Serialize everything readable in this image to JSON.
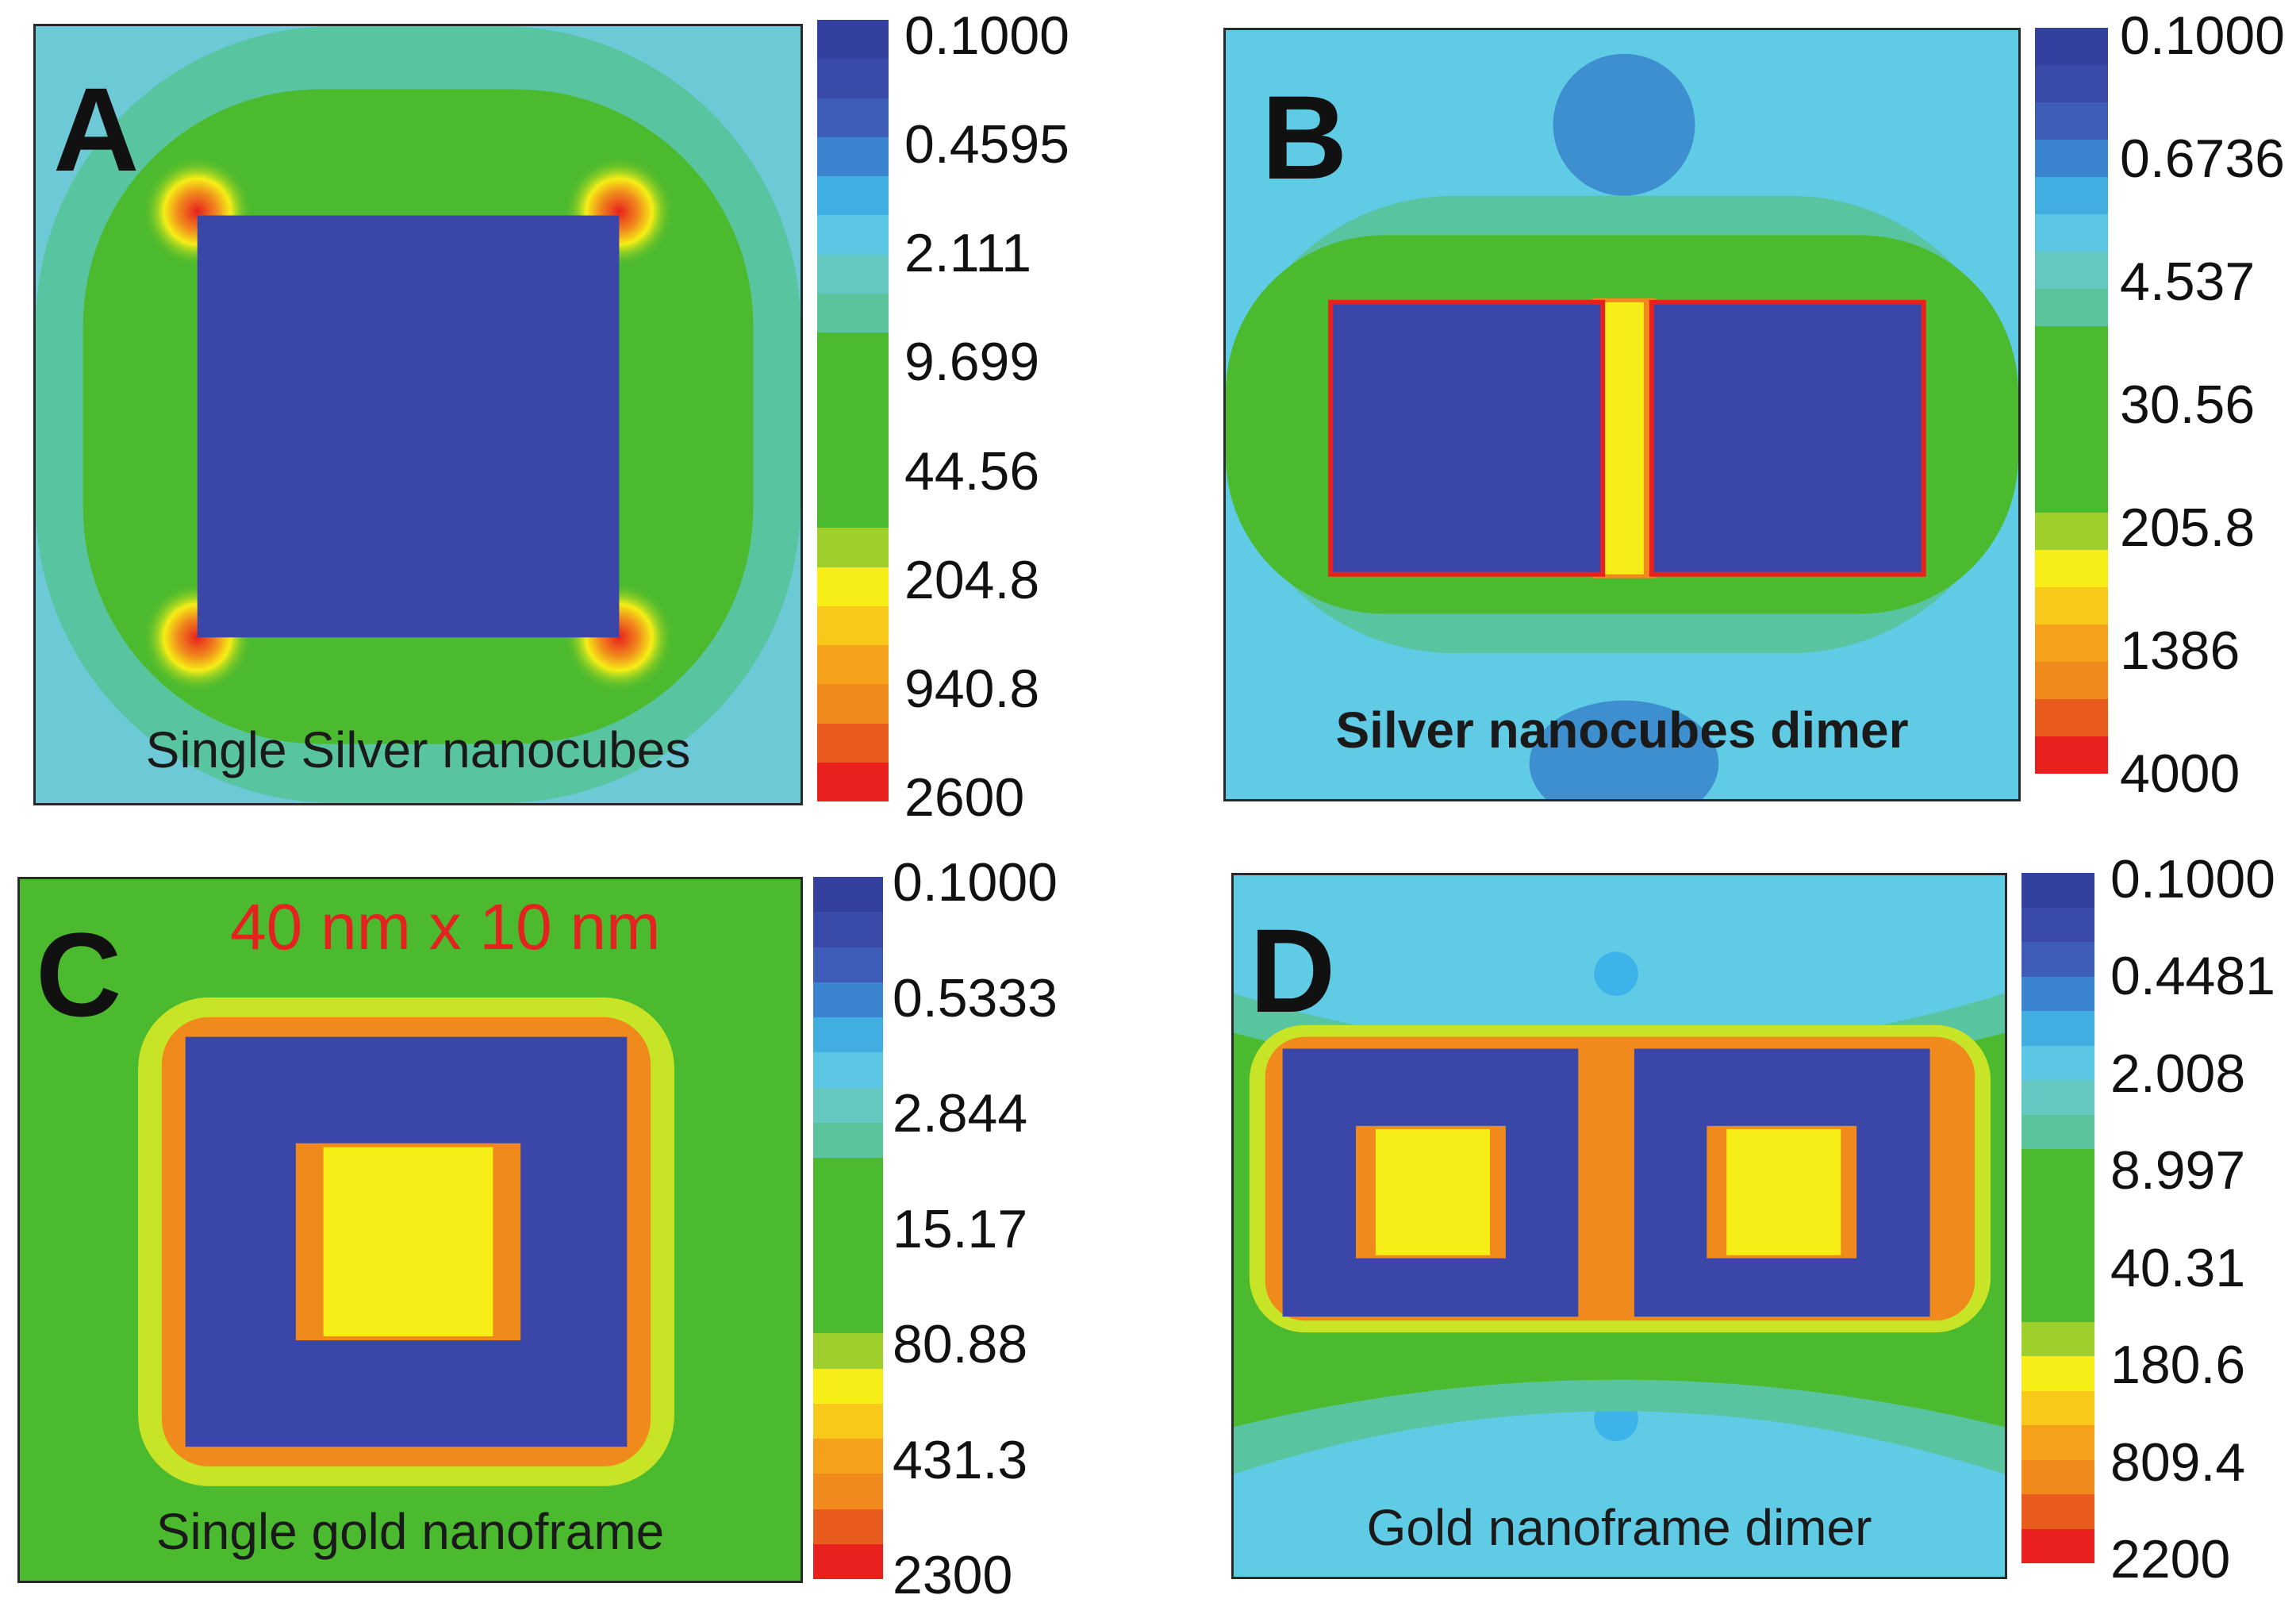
{
  "colors": {
    "blue": "#3a47a8",
    "green": "#4cba2e",
    "yellow": "#f6ee16",
    "red": "#e8211e"
  },
  "panels": [
    {
      "letter": "A",
      "caption": "Single Silver nanocubes",
      "structure": "single-cube",
      "colorbar_ticks": [
        "0.1000",
        "0.4595",
        "2.111",
        "9.699",
        "44.56",
        "204.8",
        "940.8",
        "2600"
      ]
    },
    {
      "letter": "B",
      "caption": "Silver nanocubes dimer",
      "structure": "cube-dimer",
      "colorbar_ticks": [
        "0.1000",
        "0.6736",
        "4.537",
        "30.56",
        "205.8",
        "1386",
        "4000"
      ]
    },
    {
      "letter": "C",
      "caption": "Single gold nanoframe",
      "dimension_label": "40 nm x 10 nm",
      "structure": "single-frame",
      "colorbar_ticks": [
        "0.1000",
        "0.5333",
        "2.844",
        "15.17",
        "80.88",
        "431.3",
        "2300"
      ]
    },
    {
      "letter": "D",
      "caption": "Gold nanoframe dimer",
      "structure": "frame-dimer",
      "colorbar_ticks": [
        "0.1000",
        "0.4481",
        "2.008",
        "8.997",
        "40.31",
        "180.6",
        "809.4",
        "2200"
      ]
    }
  ]
}
